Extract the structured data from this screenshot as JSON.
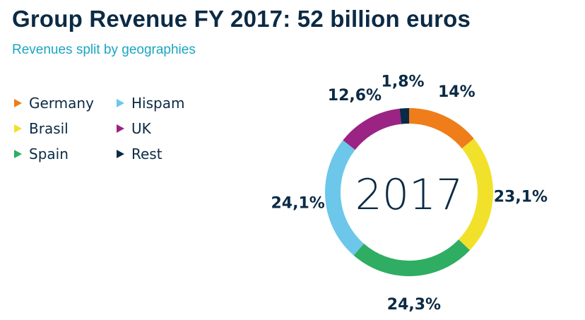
{
  "title": "Group Revenue FY 2017: 52 billion euros",
  "subtitle": "Revenues split by geographies",
  "legend": [
    {
      "label": "Germany",
      "color": "#ee7d1a"
    },
    {
      "label": "Brasil",
      "color": "#f2e12b"
    },
    {
      "label": "Spain",
      "color": "#2fad63"
    },
    {
      "label": "Hispam",
      "color": "#6cc7ea"
    },
    {
      "label": "UK",
      "color": "#9a2384"
    },
    {
      "label": "Rest",
      "color": "#0b2a45"
    }
  ],
  "chart_data": {
    "type": "pie",
    "donut": true,
    "center_label": "2017",
    "slices": [
      {
        "label": "Germany",
        "value": 14.0,
        "display": "14%",
        "color": "#ee7d1a"
      },
      {
        "label": "Brasil",
        "value": 23.1,
        "display": "23,1%",
        "color": "#f2e12b"
      },
      {
        "label": "Spain",
        "value": 24.3,
        "display": "24,3%",
        "color": "#2fad63"
      },
      {
        "label": "Hispam",
        "value": 24.1,
        "display": "24,1%",
        "color": "#6cc7ea"
      },
      {
        "label": "UK",
        "value": 12.6,
        "display": "12,6%",
        "color": "#9a2384"
      },
      {
        "label": "Rest",
        "value": 1.8,
        "display": "1,8%",
        "color": "#0b2a45"
      }
    ]
  }
}
